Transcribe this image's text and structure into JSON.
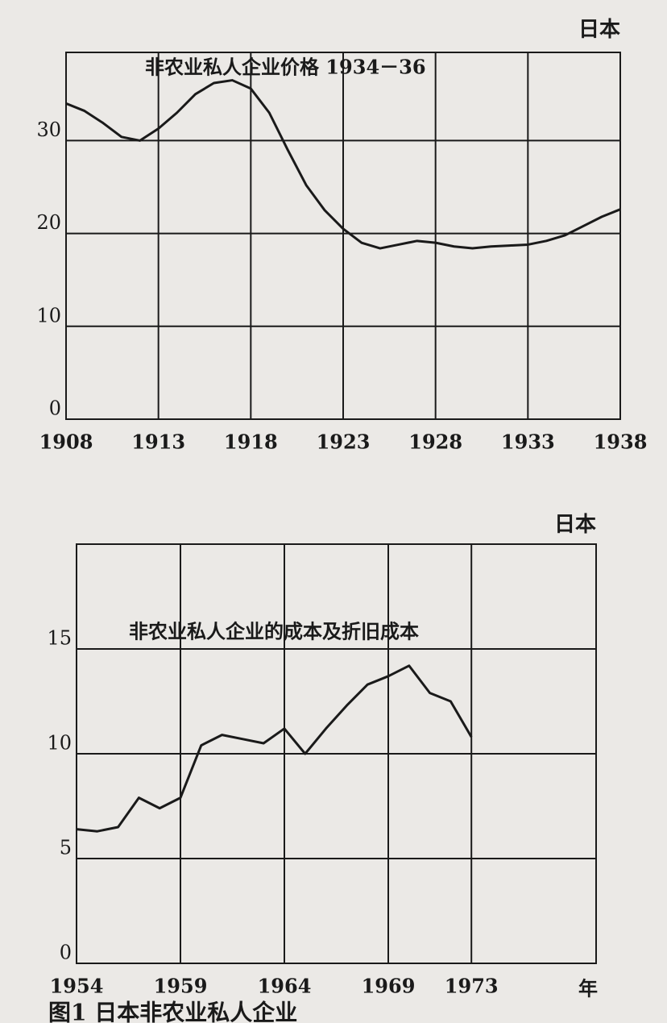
{
  "chart_data": [
    {
      "type": "line",
      "corner_label": "日本",
      "title": "非农业私人企业价格 1934－36",
      "x": [
        1908,
        1909,
        1910,
        1911,
        1912,
        1913,
        1914,
        1915,
        1916,
        1917,
        1918,
        1919,
        1920,
        1921,
        1922,
        1923,
        1924,
        1925,
        1926,
        1927,
        1928,
        1929,
        1930,
        1931,
        1932,
        1933,
        1934,
        1935,
        1936,
        1937,
        1938
      ],
      "values": [
        34,
        33.2,
        31.9,
        30.4,
        30,
        31.3,
        33,
        35,
        36.2,
        36.5,
        35.6,
        33,
        29,
        25.2,
        22.5,
        20.5,
        19,
        18.4,
        18.8,
        19.2,
        19,
        18.6,
        18.4,
        18.6,
        18.7,
        18.8,
        19.2,
        19.8,
        20.8,
        21.8,
        22.6
      ],
      "color": "#1a1a1a",
      "xlim": [
        1908,
        1938
      ],
      "ylim": [
        0,
        39.5
      ],
      "xticks": [
        1908,
        1913,
        1918,
        1923,
        1928,
        1933,
        1938
      ],
      "yticks": [
        0,
        10,
        20,
        30
      ],
      "grid": true
    },
    {
      "type": "line",
      "corner_label": "日本",
      "title": "非农业私人企业的成本及折旧成本",
      "x_label": "年",
      "x": [
        1954,
        1955,
        1956,
        1957,
        1958,
        1959,
        1960,
        1961,
        1962,
        1963,
        1964,
        1965,
        1966,
        1967,
        1968,
        1969,
        1970,
        1971,
        1972,
        1973
      ],
      "values": [
        6.4,
        6.3,
        6.5,
        7.9,
        7.4,
        7.9,
        10.4,
        10.9,
        10.7,
        10.5,
        11.2,
        10,
        11.2,
        12.3,
        13.3,
        13.7,
        14.2,
        12.9,
        12.5,
        10.8
      ],
      "color": "#1a1a1a",
      "xlim": [
        1954,
        1979
      ],
      "ylim": [
        0,
        20
      ],
      "xticks": [
        1954,
        1959,
        1964,
        1969,
        1973
      ],
      "yticks": [
        0,
        5,
        10,
        15
      ],
      "grid": true
    }
  ],
  "caption": "图1  日本非农业私人企业"
}
